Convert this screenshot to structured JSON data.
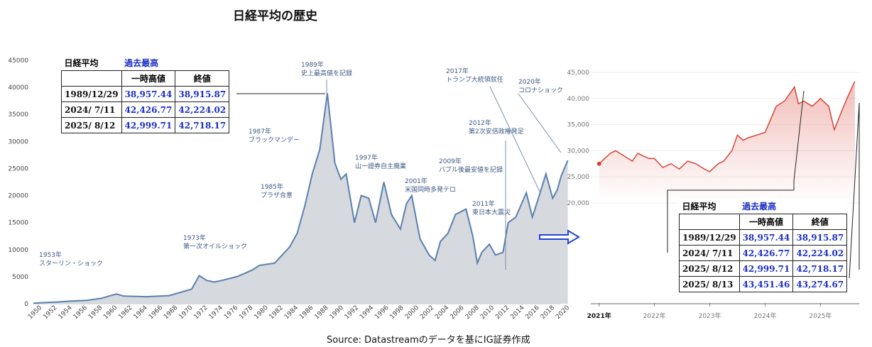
{
  "title": "日経平均の歴史",
  "source": "Source: Datastreamのデータを基にIG証券作成",
  "continue_label": "続く",
  "colors": {
    "long_line": "#5a80b0",
    "long_fill": "#d6d9de",
    "short_line": "#d84438",
    "table_blue": "#1b2fc4"
  },
  "table1": {
    "label": "日経平均",
    "label2": "過去最高",
    "col1": "一時高値",
    "col2": "終値",
    "rows": [
      {
        "date": "1989/12/29",
        "high": "38,957.44",
        "close": "38,915.87"
      },
      {
        "date": "2024/ 7/11",
        "high": "42,426.77",
        "close": "42,224.02"
      },
      {
        "date": "2025/ 8/12",
        "high": "42,999.71",
        "close": "42,718.17"
      }
    ]
  },
  "table2": {
    "label": "日経平均",
    "label2": "過去最高",
    "col1": "一時高値",
    "col2": "終値",
    "rows": [
      {
        "date": "1989/12/29",
        "high": "38,957.44",
        "close": "38,915.87"
      },
      {
        "date": "2024/ 7/11",
        "high": "42,426.77",
        "close": "42,224.02"
      },
      {
        "date": "2025/ 8/12",
        "high": "42,999.71",
        "close": "42,718.17"
      },
      {
        "date": "2025/ 8/13",
        "high": "43,451.46",
        "close": "43,274.67"
      }
    ]
  },
  "chart_data": [
    {
      "type": "area",
      "ylim": [
        0,
        45000
      ],
      "xlim": [
        1950,
        2020
      ],
      "y_ticks": [
        "0",
        "5000",
        "10000",
        "15000",
        "20000",
        "25000",
        "30000",
        "35000",
        "40000",
        "45000"
      ],
      "x_ticks": [
        "1950",
        "1952",
        "1954",
        "1956",
        "1958",
        "1960",
        "1962",
        "1964",
        "1966",
        "1968",
        "1970",
        "1972",
        "1974",
        "1976",
        "1978",
        "1980",
        "1982",
        "1984",
        "1986",
        "1988",
        "1990",
        "1992",
        "1994",
        "1996",
        "1998",
        "2000",
        "2002",
        "2004",
        "2006",
        "2008",
        "2010",
        "2012",
        "2014",
        "2016",
        "2018",
        "2020"
      ],
      "series": [
        {
          "x": [
            1950,
            1952,
            1953,
            1955,
            1957,
            1959,
            1961,
            1962,
            1965,
            1968,
            1970,
            1971,
            1972,
            1973,
            1974,
            1975,
            1977,
            1979,
            1980,
            1982,
            1984,
            1985,
            1986,
            1987,
            1988,
            1989,
            1990,
            1990.8,
            1991.5,
            1992.6,
            1993.5,
            1994.5,
            1995.4,
            1996.5,
            1997.5,
            1998.7,
            1999.5,
            2000.2,
            2001.3,
            2002.5,
            2003.3,
            2004,
            2005,
            2006,
            2007.4,
            2008.3,
            2008.9,
            2009.5,
            2010.5,
            2011.3,
            2012.3,
            2013,
            2014,
            2015.4,
            2016.2,
            2017,
            2018,
            2018.9,
            2019.5,
            2020,
            2020.9
          ],
          "y": [
            100,
            250,
            300,
            500,
            600,
            1000,
            1800,
            1400,
            1300,
            1500,
            2300,
            2700,
            5200,
            4300,
            4000,
            4300,
            5000,
            6200,
            7100,
            7500,
            10500,
            13000,
            18000,
            24000,
            28500,
            38915,
            26000,
            23000,
            24000,
            15000,
            20000,
            19500,
            15000,
            22500,
            16500,
            13800,
            18500,
            20000,
            12000,
            9000,
            8000,
            11500,
            13000,
            16500,
            17500,
            12500,
            7500,
            9500,
            11000,
            9000,
            9500,
            15000,
            16000,
            20500,
            16000,
            19500,
            24000,
            19500,
            21000,
            23500,
            26500
          ]
        }
      ],
      "annotations": [
        {
          "year": 1953,
          "text": "1953年\nスターリン・ショック"
        },
        {
          "year": 1973,
          "text": "1973年\n第一次オイルショック"
        },
        {
          "year": 1985,
          "text": "1985年\nプラザ合意"
        },
        {
          "year": 1987,
          "text": "1987年\nブラックマンデー"
        },
        {
          "year": 1989,
          "text": "1989年\n史上最高値を記録"
        },
        {
          "year": 1997,
          "text": "1997年\n山一證券自主廃業"
        },
        {
          "year": 2001,
          "text": "2001年\n米国同時多発テロ"
        },
        {
          "year": 2009,
          "text": "2009年\nバブル後最安値を記録"
        },
        {
          "year": 2011,
          "text": "2011年\n東日本大震災"
        },
        {
          "year": 2012,
          "text": "2012年\n第2次安倍政権発足"
        },
        {
          "year": 2017,
          "text": "2017年\nトランプ大統領就任"
        },
        {
          "year": 2020,
          "text": "2020年\nコロナショック"
        }
      ]
    },
    {
      "type": "line",
      "ylim": [
        20000,
        45000
      ],
      "y_ticks": [
        "20,000",
        "25,000",
        "30,000",
        "35,000",
        "40,000",
        "45,000"
      ],
      "x_ticks": [
        "2021年",
        "2022年",
        "2023年",
        "2024年",
        "2025年"
      ],
      "series": [
        {
          "x": [
            2021.0,
            2021.1,
            2021.2,
            2021.3,
            2021.45,
            2021.6,
            2021.7,
            2021.8,
            2021.9,
            2022.0,
            2022.15,
            2022.3,
            2022.45,
            2022.6,
            2022.75,
            2022.9,
            2023.0,
            2023.15,
            2023.25,
            2023.4,
            2023.5,
            2023.6,
            2023.7,
            2023.85,
            2024.0,
            2024.1,
            2024.2,
            2024.35,
            2024.53,
            2024.6,
            2024.7,
            2024.85,
            2025.0,
            2025.15,
            2025.25,
            2025.4,
            2025.5,
            2025.62
          ],
          "y": [
            27500,
            28500,
            29500,
            30000,
            29000,
            28000,
            29500,
            29000,
            28500,
            28500,
            26800,
            27500,
            26500,
            28000,
            27500,
            26500,
            26000,
            27500,
            28000,
            30000,
            33000,
            32000,
            32500,
            33000,
            33500,
            36000,
            38500,
            39500,
            42224,
            39000,
            39500,
            38500,
            40000,
            38500,
            34000,
            38000,
            40500,
            43274
          ]
        }
      ]
    }
  ]
}
